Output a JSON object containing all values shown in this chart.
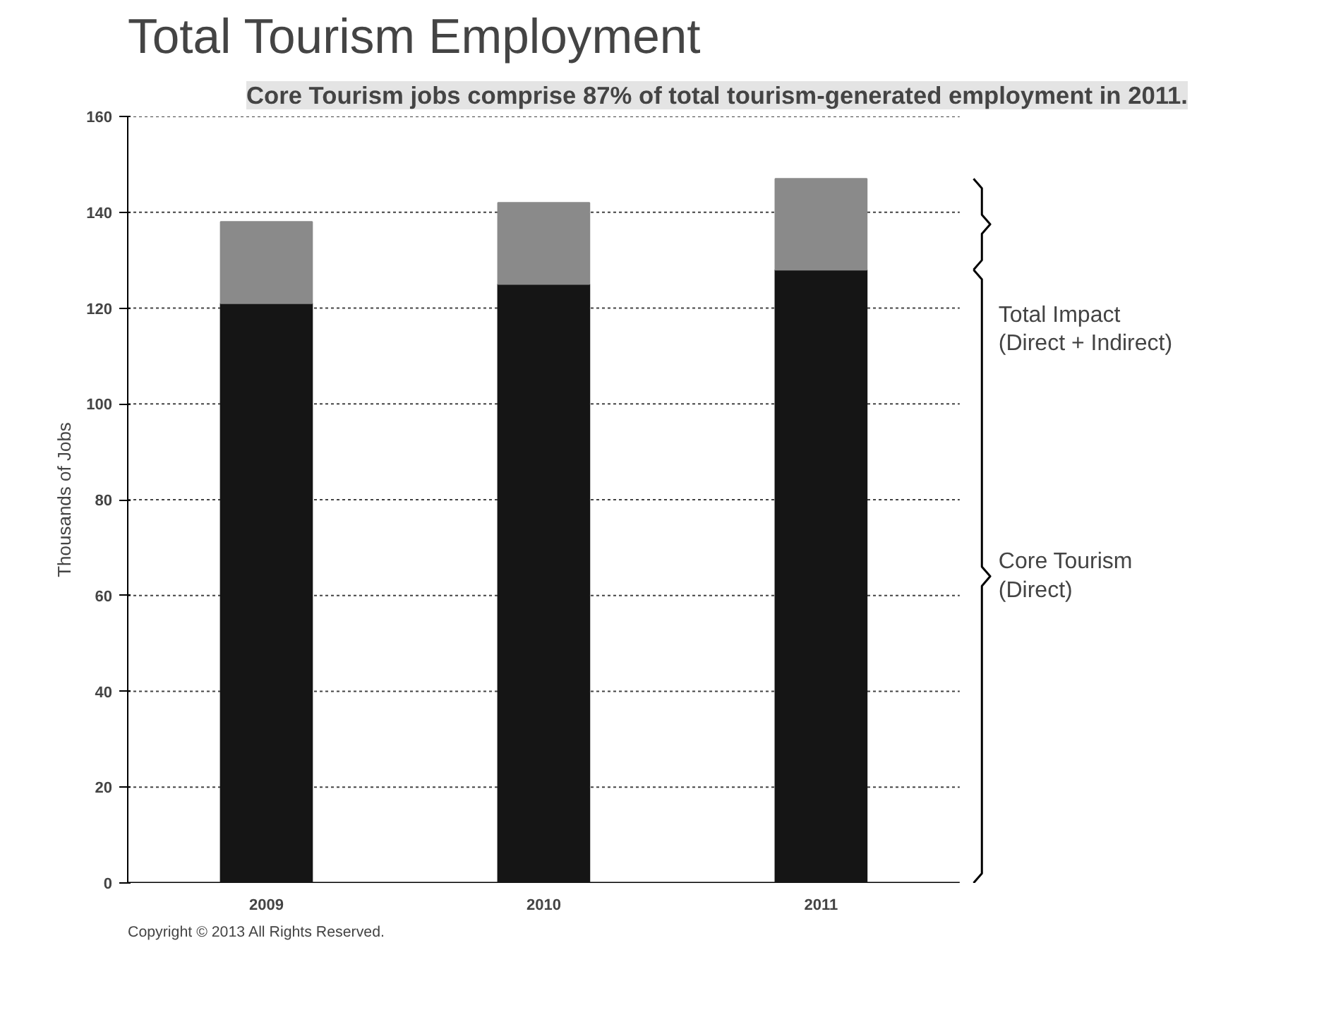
{
  "chart_data": {
    "type": "bar",
    "title": "Total Tourism Employment",
    "subtitle": "Core Tourism jobs comprise 87% of total tourism-generated employment in 2011.",
    "ylabel": "Thousands of Jobs",
    "categories": [
      "2009",
      "2010",
      "2011"
    ],
    "stacked": true,
    "series": [
      {
        "name": "Core Tourism (Direct)",
        "color": "#151515",
        "values": [
          121,
          125,
          128
        ]
      },
      {
        "color": "#8a8a8a",
        "values": [
          17,
          17,
          19
        ]
      }
    ],
    "ylim": [
      0,
      160
    ],
    "yticks": [
      0,
      20,
      40,
      60,
      80,
      100,
      120,
      140,
      160
    ],
    "grid": "y",
    "annotations": [
      "Total Impact (Direct + Indirect)",
      "Copyright © 2013 All Rights Reserved."
    ]
  }
}
